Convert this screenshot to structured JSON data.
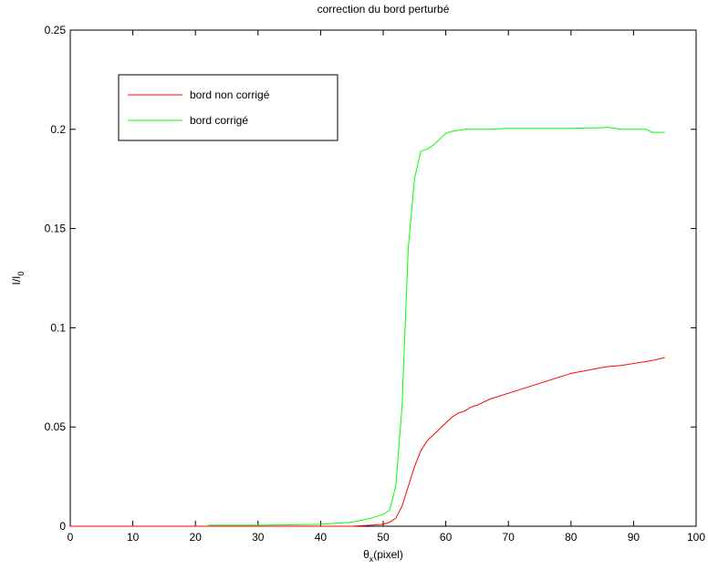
{
  "chart_data": {
    "type": "line",
    "title": "correction du bord perturbé",
    "xlabel": [
      "θ",
      "x",
      "(pixel)"
    ],
    "ylabel": [
      "I/I",
      "0"
    ],
    "x": [
      0,
      5,
      10,
      15,
      20,
      22,
      25,
      30,
      35,
      40,
      45,
      48,
      50,
      51,
      52,
      53,
      54,
      55,
      56,
      57,
      58,
      59,
      60,
      61,
      62,
      63,
      64,
      65,
      67,
      70,
      75,
      80,
      85,
      86,
      88,
      90,
      92,
      93,
      95
    ],
    "series": [
      {
        "name": "bord non corrigé",
        "color": "#ff0000",
        "values": [
          0,
          0,
          0,
          0,
          0,
          0,
          0,
          0,
          0,
          0,
          0,
          0.0005,
          0.001,
          0.002,
          0.004,
          0.01,
          0.02,
          0.03,
          0.038,
          0.043,
          0.046,
          0.049,
          0.052,
          0.055,
          0.057,
          0.058,
          0.06,
          0.061,
          0.064,
          0.067,
          0.072,
          0.077,
          0.08,
          0.0805,
          0.081,
          0.082,
          0.083,
          0.0835,
          0.085
        ]
      },
      {
        "name": "bord corrigé",
        "color": "#00ff00",
        "values": [
          null,
          null,
          null,
          null,
          null,
          0.0005,
          0.0005,
          0.0005,
          0.0007,
          0.001,
          0.002,
          0.004,
          0.006,
          0.008,
          0.02,
          0.06,
          0.14,
          0.175,
          0.189,
          0.19,
          0.192,
          0.195,
          0.198,
          0.199,
          0.1995,
          0.2,
          0.2,
          0.2,
          0.2,
          0.2005,
          0.2005,
          0.2005,
          0.2008,
          0.201,
          0.2,
          0.2,
          0.2,
          0.1985,
          0.1985
        ]
      }
    ],
    "xlim": [
      0,
      100
    ],
    "xticks": [
      0,
      10,
      20,
      30,
      40,
      50,
      60,
      70,
      80,
      90,
      100
    ],
    "ylim": [
      0,
      0.25
    ],
    "yticks": [
      0,
      0.05,
      0.1,
      0.15,
      0.2,
      0.25
    ],
    "legend": "upper left",
    "grid": false
  }
}
